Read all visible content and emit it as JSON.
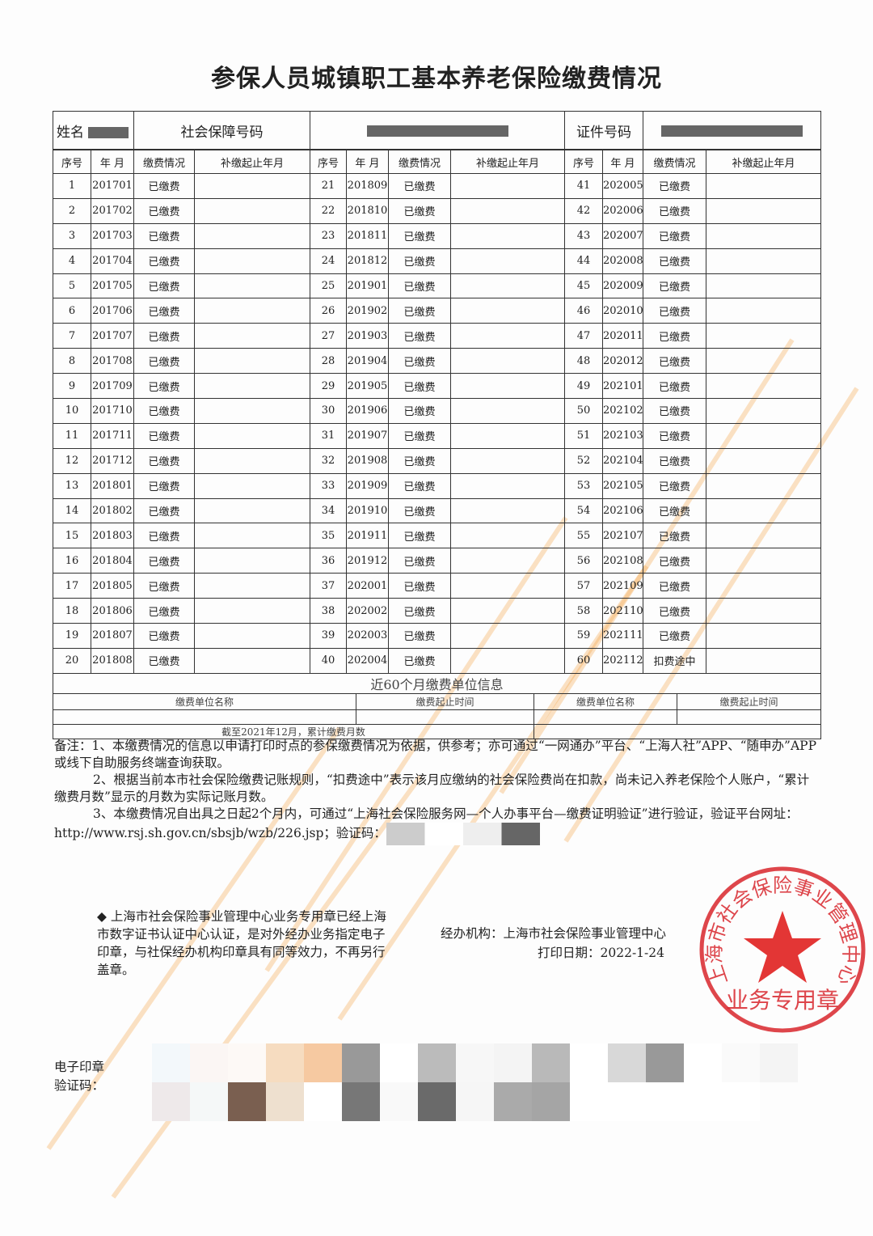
{
  "title": "参保人员城镇职工基本养老保险缴费情况",
  "info": {
    "name_label": "姓名",
    "ssn_label": "社会保障号码",
    "id_label": "证件号码"
  },
  "columns": {
    "seq": "序号",
    "month": "年 月",
    "status": "缴费情况",
    "makeup": "补缴起止年月"
  },
  "records": [
    [
      "1",
      "201701",
      "已缴费"
    ],
    [
      "2",
      "201702",
      "已缴费"
    ],
    [
      "3",
      "201703",
      "已缴费"
    ],
    [
      "4",
      "201704",
      "已缴费"
    ],
    [
      "5",
      "201705",
      "已缴费"
    ],
    [
      "6",
      "201706",
      "已缴费"
    ],
    [
      "7",
      "201707",
      "已缴费"
    ],
    [
      "8",
      "201708",
      "已缴费"
    ],
    [
      "9",
      "201709",
      "已缴费"
    ],
    [
      "10",
      "201710",
      "已缴费"
    ],
    [
      "11",
      "201711",
      "已缴费"
    ],
    [
      "12",
      "201712",
      "已缴费"
    ],
    [
      "13",
      "201801",
      "已缴费"
    ],
    [
      "14",
      "201802",
      "已缴费"
    ],
    [
      "15",
      "201803",
      "已缴费"
    ],
    [
      "16",
      "201804",
      "已缴费"
    ],
    [
      "17",
      "201805",
      "已缴费"
    ],
    [
      "18",
      "201806",
      "已缴费"
    ],
    [
      "19",
      "201807",
      "已缴费"
    ],
    [
      "20",
      "201808",
      "已缴费"
    ],
    [
      "21",
      "201809",
      "已缴费"
    ],
    [
      "22",
      "201810",
      "已缴费"
    ],
    [
      "23",
      "201811",
      "已缴费"
    ],
    [
      "24",
      "201812",
      "已缴费"
    ],
    [
      "25",
      "201901",
      "已缴费"
    ],
    [
      "26",
      "201902",
      "已缴费"
    ],
    [
      "27",
      "201903",
      "已缴费"
    ],
    [
      "28",
      "201904",
      "已缴费"
    ],
    [
      "29",
      "201905",
      "已缴费"
    ],
    [
      "30",
      "201906",
      "已缴费"
    ],
    [
      "31",
      "201907",
      "已缴费"
    ],
    [
      "32",
      "201908",
      "已缴费"
    ],
    [
      "33",
      "201909",
      "已缴费"
    ],
    [
      "34",
      "201910",
      "已缴费"
    ],
    [
      "35",
      "201911",
      "已缴费"
    ],
    [
      "36",
      "201912",
      "已缴费"
    ],
    [
      "37",
      "202001",
      "已缴费"
    ],
    [
      "38",
      "202002",
      "已缴费"
    ],
    [
      "39",
      "202003",
      "已缴费"
    ],
    [
      "40",
      "202004",
      "已缴费"
    ],
    [
      "41",
      "202005",
      "已缴费"
    ],
    [
      "42",
      "202006",
      "已缴费"
    ],
    [
      "43",
      "202007",
      "已缴费"
    ],
    [
      "44",
      "202008",
      "已缴费"
    ],
    [
      "45",
      "202009",
      "已缴费"
    ],
    [
      "46",
      "202010",
      "已缴费"
    ],
    [
      "47",
      "202011",
      "已缴费"
    ],
    [
      "48",
      "202012",
      "已缴费"
    ],
    [
      "49",
      "202101",
      "已缴费"
    ],
    [
      "50",
      "202102",
      "已缴费"
    ],
    [
      "51",
      "202103",
      "已缴费"
    ],
    [
      "52",
      "202104",
      "已缴费"
    ],
    [
      "53",
      "202105",
      "已缴费"
    ],
    [
      "54",
      "202106",
      "已缴费"
    ],
    [
      "55",
      "202107",
      "已缴费"
    ],
    [
      "56",
      "202108",
      "已缴费"
    ],
    [
      "57",
      "202109",
      "已缴费"
    ],
    [
      "58",
      "202110",
      "已缴费"
    ],
    [
      "59",
      "202111",
      "已缴费"
    ],
    [
      "60",
      "202112",
      "扣费途中"
    ]
  ],
  "units": {
    "title": "近60个月缴费单位信息",
    "unit_name": "缴费单位名称",
    "period": "缴费起止时间",
    "cumulative": "截至2021年12月，累计缴费月数"
  },
  "notes": [
    "备注：1、本缴费情况的信息以申请打印时点的参保缴费情况为依据，供参考；亦可通过“一网通办”平台、“上海人社”APP、“随申办”APP或线下自助服务终端查询获取。",
    "2、根据当前本市社会保险缴费记账规则，“扣费途中”表示该月应缴纳的社会保险费尚在扣款，尚未记入养老保险个人账户，“累计缴费月数”显示的月数为实际记账月数。",
    "3、本缴费情况自出具之日起2个月内，可通过“上海社会保险服务网—个人办事平台—缴费证明验证”进行验证，验证平台网址：http://www.rsj.sh.gov.cn/sbsjb/wzb/226.jsp；验证码："
  ],
  "seal_note": "◆ 上海市社会保险事业管理中心业务专用章已经上海市数字证书认证中心认证，是对外经办业务指定电子印章，与社保经办机构印章具有同等效力，不再另行盖章。",
  "agency": "经办机构：上海市社会保险事业管理中心",
  "print_date": "打印日期：2022-1-24",
  "stamp": {
    "ring_text": "上海市社会保险事业管理中心",
    "bottom_text": "业务专用章",
    "color": "#d8262c"
  },
  "evidence_label": [
    "电子印章",
    "验证码："
  ],
  "watermark_color": "#f5a03c"
}
